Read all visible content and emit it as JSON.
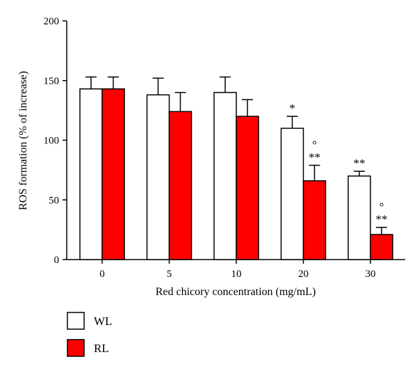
{
  "chart_data": {
    "type": "bar",
    "title": "",
    "xlabel": "Red chicory concentration (mg/mL)",
    "ylabel": "ROS formation (% of increase)",
    "ylim": [
      0,
      200
    ],
    "yticks": [
      0,
      50,
      100,
      150,
      200
    ],
    "categories": [
      "0",
      "5",
      "10",
      "20",
      "30"
    ],
    "series": [
      {
        "name": "WL",
        "color": "#ffffff",
        "values": [
          143,
          138,
          140,
          110,
          70
        ],
        "errors": [
          10,
          14,
          13,
          10,
          4
        ]
      },
      {
        "name": "RL",
        "color": "#ff0000",
        "values": [
          143,
          124,
          120,
          66,
          21
        ],
        "errors": [
          10,
          16,
          14,
          13,
          6
        ]
      }
    ],
    "annotations": [
      {
        "series": "WL",
        "category": "20",
        "lines": [
          "*"
        ]
      },
      {
        "series": "RL",
        "category": "20",
        "lines": [
          "°",
          "**"
        ]
      },
      {
        "series": "WL",
        "category": "30",
        "lines": [
          "**"
        ]
      },
      {
        "series": "RL",
        "category": "30",
        "lines": [
          "°",
          "**"
        ]
      }
    ],
    "legend": {
      "position": "bottom-left",
      "entries": [
        "WL",
        "RL"
      ]
    }
  }
}
